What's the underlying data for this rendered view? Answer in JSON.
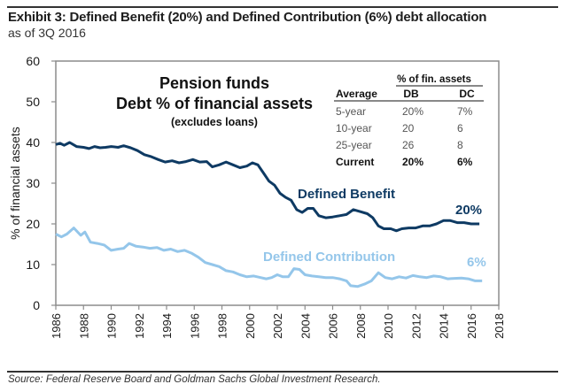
{
  "header": {
    "title": "Exhibit 3: Defined Benefit (20%) and Defined Contribution (6%) debt allocation",
    "subtitle": "as of 3Q 2016"
  },
  "footer": {
    "source": "Source: Federal Reserve Board and Goldman Sachs Global Investment Research."
  },
  "colors": {
    "db": "#0e3a63",
    "dc": "#94c6ea",
    "axis": "#8c8c8c",
    "text": "#1a1a1a"
  },
  "chart_data": {
    "type": "line",
    "title_lines": [
      "Pension funds",
      "Debt % of financial assets"
    ],
    "title_note": "(excludes loans)",
    "xlabel": "",
    "ylabel": "% of financial assets",
    "xlim": [
      1986,
      2018
    ],
    "ylim": [
      0,
      60
    ],
    "x_ticks": [
      "1986",
      "1988",
      "1990",
      "1992",
      "1994",
      "1996",
      "1998",
      "2000",
      "2002",
      "2004",
      "2006",
      "2008",
      "2010",
      "2012",
      "2014",
      "2016",
      "2018"
    ],
    "y_ticks": [
      "0",
      "10",
      "20",
      "30",
      "40",
      "50",
      "60"
    ],
    "grid": false,
    "legend": "inline-labels",
    "series": [
      {
        "name": "Defined Benefit",
        "end_label": "20%",
        "x": [
          1986.0,
          1986.3,
          1986.6,
          1987.0,
          1987.5,
          1988.0,
          1988.4,
          1988.8,
          1989.2,
          1989.6,
          1990.0,
          1990.5,
          1990.9,
          1991.4,
          1991.9,
          1992.4,
          1992.9,
          1993.4,
          1993.9,
          1994.4,
          1994.9,
          1995.4,
          1995.9,
          1996.4,
          1996.9,
          1997.3,
          1997.8,
          1998.3,
          1998.8,
          1999.3,
          1999.8,
          2000.2,
          2000.6,
          2001.0,
          2001.4,
          2001.8,
          2002.2,
          2002.6,
          2003.0,
          2003.4,
          2003.8,
          2004.2,
          2004.6,
          2005.0,
          2005.5,
          2006.0,
          2006.5,
          2007.0,
          2007.5,
          2008.0,
          2008.5,
          2008.9,
          2009.3,
          2009.7,
          2010.2,
          2010.6,
          2011.0,
          2011.5,
          2012.0,
          2012.5,
          2013.0,
          2013.5,
          2014.0,
          2014.5,
          2015.0,
          2015.5,
          2016.0,
          2016.6
        ],
        "values": [
          39.5,
          39.8,
          39.3,
          40.0,
          39.0,
          38.8,
          38.5,
          39.0,
          38.7,
          38.8,
          39.0,
          38.8,
          39.2,
          38.7,
          38.0,
          37.0,
          36.5,
          35.8,
          35.2,
          35.5,
          35.0,
          35.3,
          35.8,
          35.2,
          35.3,
          34.0,
          34.5,
          35.2,
          34.5,
          33.8,
          34.2,
          35.0,
          34.5,
          32.5,
          30.5,
          29.5,
          27.5,
          26.5,
          25.8,
          23.5,
          22.8,
          23.8,
          23.8,
          22.0,
          21.5,
          21.7,
          22.0,
          22.3,
          23.5,
          23.0,
          22.5,
          21.5,
          19.5,
          18.8,
          18.8,
          18.3,
          18.8,
          19.0,
          19.0,
          19.5,
          19.5,
          20.0,
          20.8,
          20.8,
          20.3,
          20.3,
          20.0,
          20.0
        ]
      },
      {
        "name": "Defined Contribution",
        "end_label": "6%",
        "x": [
          1986.0,
          1986.4,
          1986.8,
          1987.3,
          1987.8,
          1988.1,
          1988.5,
          1989.0,
          1989.5,
          1990.0,
          1990.5,
          1990.9,
          1991.3,
          1991.8,
          1992.3,
          1992.8,
          1993.3,
          1993.8,
          1994.3,
          1994.8,
          1995.3,
          1995.8,
          1996.3,
          1996.8,
          1997.3,
          1997.8,
          1998.3,
          1998.8,
          1999.3,
          1999.8,
          2000.3,
          2000.8,
          2001.2,
          2001.6,
          2002.0,
          2002.4,
          2002.8,
          2003.2,
          2003.6,
          2004.0,
          2004.5,
          2005.0,
          2005.5,
          2006.0,
          2006.5,
          2007.0,
          2007.3,
          2007.8,
          2008.3,
          2008.8,
          2009.3,
          2009.8,
          2010.3,
          2010.8,
          2011.3,
          2011.8,
          2012.3,
          2012.8,
          2013.3,
          2013.8,
          2014.3,
          2014.8,
          2015.3,
          2015.8,
          2016.3,
          2016.8
        ],
        "values": [
          17.5,
          16.8,
          17.5,
          19.0,
          17.2,
          18.0,
          15.5,
          15.2,
          14.8,
          13.5,
          13.8,
          14.0,
          15.2,
          14.5,
          14.3,
          14.0,
          14.2,
          13.5,
          13.8,
          13.2,
          13.5,
          12.8,
          11.8,
          10.5,
          10.0,
          9.5,
          8.5,
          8.2,
          7.5,
          7.0,
          7.2,
          6.8,
          6.5,
          6.8,
          7.5,
          7.0,
          7.0,
          9.0,
          8.8,
          7.5,
          7.2,
          7.0,
          6.8,
          6.8,
          6.5,
          6.0,
          4.8,
          4.6,
          5.2,
          6.0,
          8.0,
          6.8,
          6.5,
          7.0,
          6.7,
          7.3,
          7.0,
          6.8,
          7.2,
          7.0,
          6.5,
          6.6,
          6.7,
          6.5,
          6.0,
          6.0
        ]
      }
    ],
    "table": {
      "group_header": "% of fin. assets",
      "columns": [
        "Average",
        "DB",
        "DC"
      ],
      "rows": [
        {
          "label": "5-year",
          "db": "20%",
          "dc": "7%",
          "bold": false
        },
        {
          "label": "10-year",
          "db": "20",
          "dc": "6",
          "bold": false
        },
        {
          "label": "25-year",
          "db": "26",
          "dc": "8",
          "bold": false
        },
        {
          "label": "Current",
          "db": "20%",
          "dc": "6%",
          "bold": true
        }
      ]
    }
  }
}
